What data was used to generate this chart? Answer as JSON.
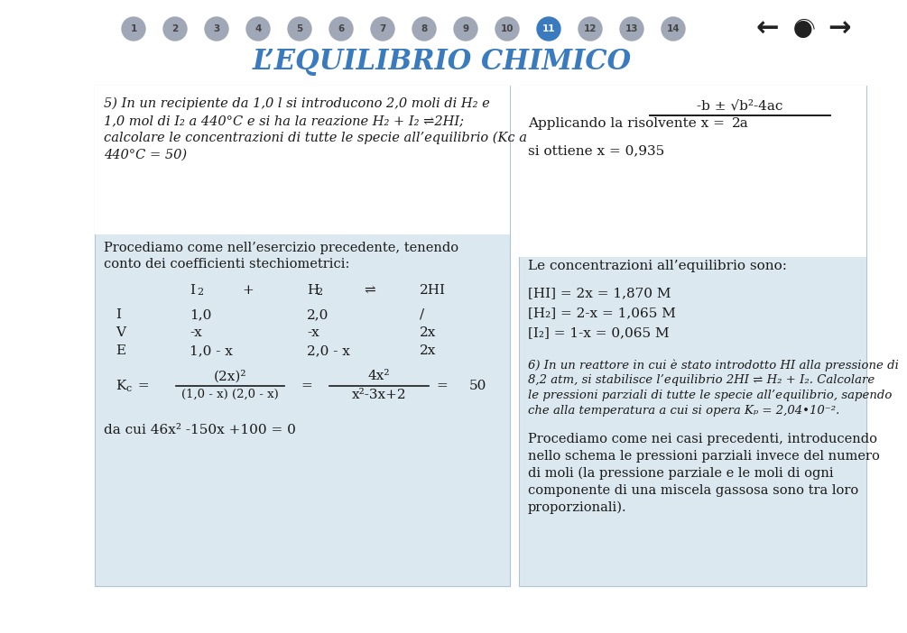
{
  "bg_color": "#ffffff",
  "left_panel_bg": "#dce8f0",
  "right_panel_bg": "#dce8f0",
  "title": "L’EQUILIBRIO CHIMICO",
  "title_color": "#3a7abf",
  "nav_numbers": [
    "1",
    "2",
    "3",
    "4",
    "5",
    "6",
    "7",
    "8",
    "9",
    "10",
    "11",
    "12",
    "13",
    "14"
  ],
  "active_nav": 10,
  "p5_line1": "5) In un recipiente da 1,0 l si introducono 2,0 moli di H",
  "p5_line1b": "2",
  "p5_line1c": " e",
  "p5_line2": "1,0 mol di I",
  "p5_line2b": "2",
  "p5_line2c": " a 440°C e si ha la reazione H",
  "p5_line2d": "2",
  "p5_line2e": " + I",
  "p5_line2f": "2",
  "p5_line2g": " ⇌2HI;",
  "p5_line3": "calcolare le concentrazioni di tutte le specie all’equilibrio (K",
  "p5_line3b": "c",
  "p5_line3c": " a",
  "p5_line4": "440°C = 50)",
  "proc_text_1": "Procediamo come nell’esercizio precedente, tenendo",
  "proc_text_2": "conto dei coefficienti stechiometrici:",
  "table_col1_header": "I",
  "table_col1_sub": "2",
  "table_plus": "+",
  "table_col2_header": "H",
  "table_col2_sub": "2",
  "table_eq": "⇌",
  "table_col3": "2HI",
  "row_I": [
    "I",
    "1,0",
    "2,0",
    "/"
  ],
  "row_V": [
    "V",
    "-x",
    "-x",
    "2x"
  ],
  "row_E": [
    "E",
    "1,0 - x",
    "2,0 - x",
    "2x"
  ],
  "kc_num1": "(2x)",
  "kc_num1_exp": "2",
  "kc_num2": "4x",
  "kc_num2_exp": "2",
  "kc_den1": "(1,0 - x) (2,0 - x)",
  "kc_den2": "x²-3x+2",
  "kc_val": "50",
  "dacui": "da cui 46x",
  "dacui_exp": "2",
  "dacui_rest": " -150x +100 = 0",
  "risolvente_pre": "Applicando la risolvente x =",
  "risolvente_num": "-b ± √b²-4ac",
  "risolvente_den": "2a",
  "sioottiene": "si ottiene x = 0,935",
  "conc_title": "Le concentrazioni all’equilibrio sono:",
  "conc1": "[HI] = 2x = 1,870 M",
  "conc2_pre": "[H",
  "conc2_sub": "2",
  "conc2_post": "] = 2-x = 1,065 M",
  "conc3_pre": "[I",
  "conc3_sub": "2",
  "conc3_post": "] = 1-x = 0,065 M",
  "p6_line1": "6) In un reattore in cui è stato introdotto HI alla pressione di",
  "p6_line2": "8,2 atm, si stabilisce l’equilibrio 2HI ⇌ H",
  "p6_line2b": "2",
  "p6_line2c": " + I",
  "p6_line2d": "2",
  "p6_line2e": ". Calcolare",
  "p6_line3": "le pressioni parziali di tutte le specie all’equilibrio, sapendo",
  "p6_line4": "che alla temperatura a cui si opera K",
  "p6_line4b": "p",
  "p6_line4c": " = 2,04•10⁻².",
  "proc2_line1": "Procediamo come nei casi precedenti, introducendo",
  "proc2_line2": "nello schema le pressioni parziali invece del numero",
  "proc2_line3": "di moli (la pressione parziale e le moli di ogni",
  "proc2_line4": "componente di una miscela gassosa sono tra loro",
  "proc2_line5": "proporzionali).",
  "text_color": "#1a1a1a",
  "nav_inactive_color": "#a0a8b8",
  "nav_active_color": "#3a7abf",
  "panel_border": "#b0c4d8"
}
